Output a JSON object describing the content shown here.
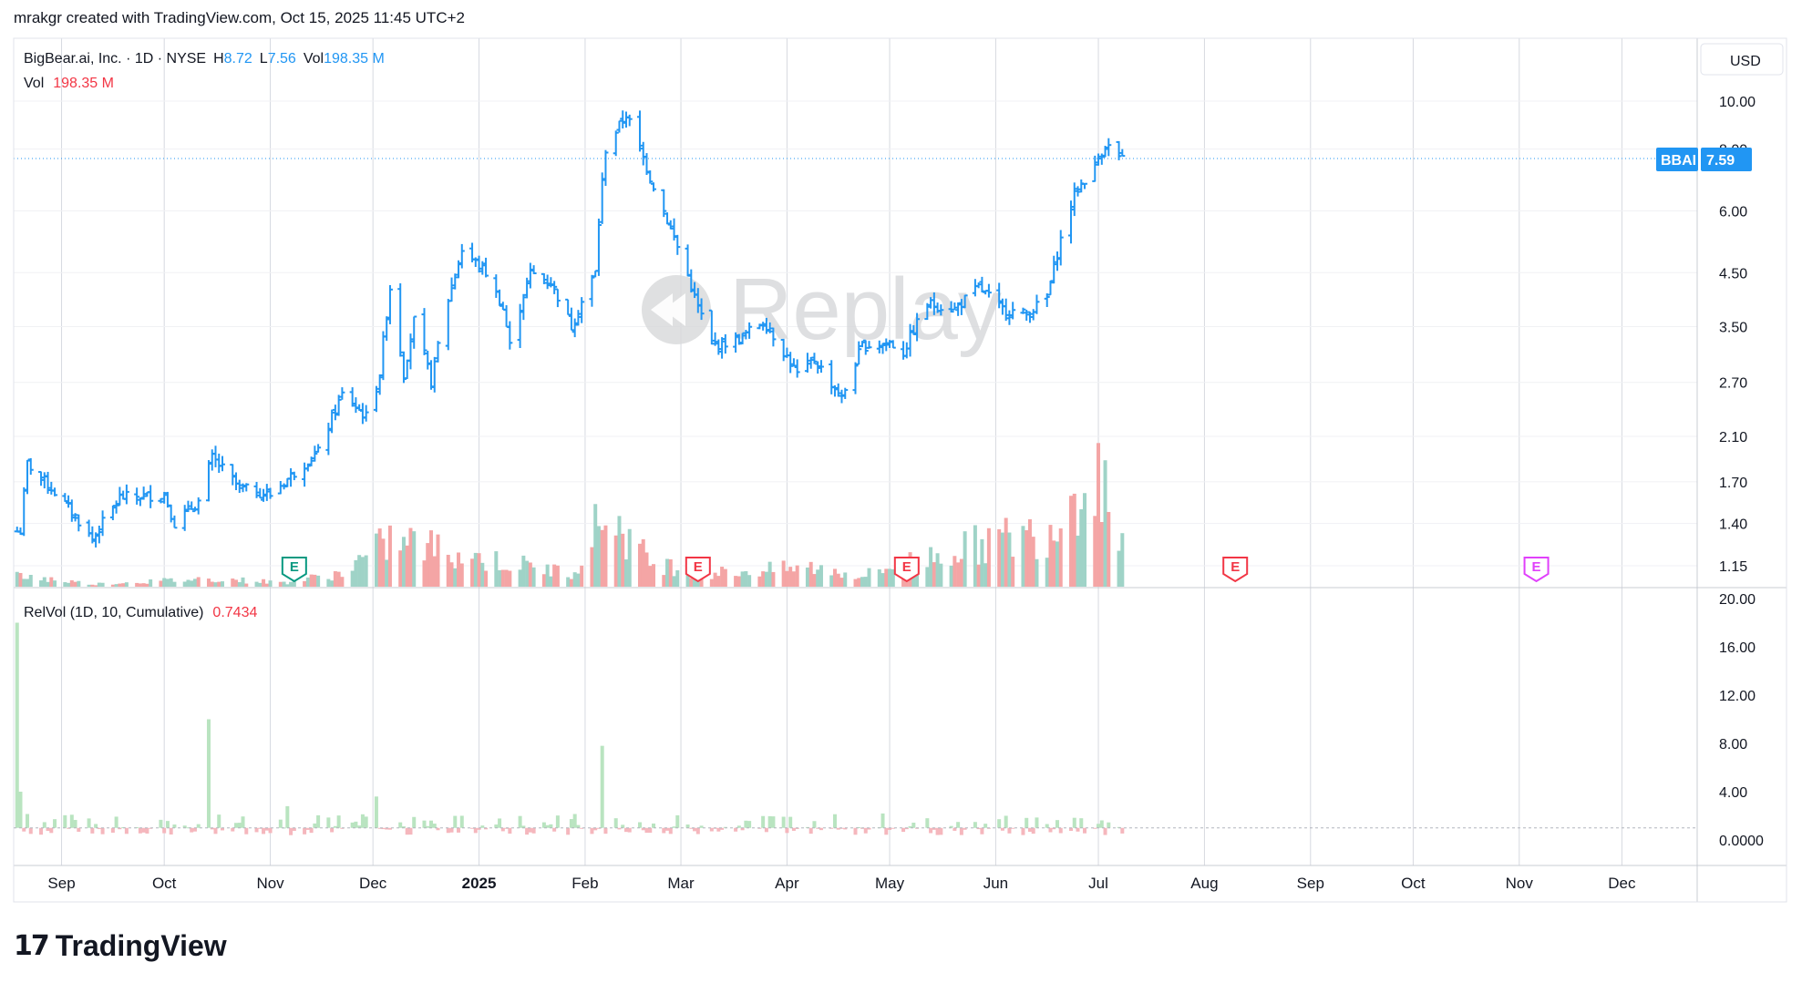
{
  "header": {
    "created_by": "mrakgr created with TradingView.com, Oct 15, 2025 11:45 UTC+2"
  },
  "legend": {
    "symbol": "BigBear.ai, Inc. · 1D · NYSE",
    "h_label": "H",
    "h_value": "8.72",
    "l_label": "L",
    "l_value": "7.56",
    "vol_label": "Vol",
    "vol_value": "198.35 M",
    "vol_row_label": "Vol",
    "vol_row_value": "198.35 M"
  },
  "currency": "USD",
  "price_tag": {
    "ticker": "BBAI",
    "price": "7.59"
  },
  "watermark": "Replay",
  "relvol_legend": {
    "label": "RelVol (1D, 10, Cumulative)",
    "value": "0.7434"
  },
  "brand": "TradingView",
  "colors": {
    "up": "#2196f3",
    "vol_up": "#9fd3c7",
    "vol_down": "#f4a5a5",
    "rv_up": "#b9e4c0",
    "rv_down": "#f5b7bd",
    "earnings_past": "#089981",
    "earnings_future": "#f23645",
    "earnings_dividend": "#e040fb",
    "grid": "#d6d9e0"
  },
  "chart_data": [
    {
      "type": "ohlc",
      "title": "BigBear.ai, Inc. · 1D · NYSE",
      "scale": "log",
      "y_ticks": [
        "10.00",
        "8.00",
        "6.00",
        "4.50",
        "3.50",
        "2.70",
        "2.10",
        "1.70",
        "1.40",
        "1.15"
      ],
      "x_ticks": [
        "Sep",
        "Oct",
        "Nov",
        "Dec",
        "2025",
        "Feb",
        "Mar",
        "Apr",
        "May",
        "Jun",
        "Jul",
        "Aug",
        "Sep",
        "Oct",
        "Nov",
        "Dec"
      ],
      "anchors": [
        [
          "2024-08-20",
          1.35
        ],
        [
          "2024-08-22",
          1.85
        ],
        [
          "2024-08-30",
          1.62
        ],
        [
          "2024-09-10",
          1.3
        ],
        [
          "2024-09-18",
          1.58
        ],
        [
          "2024-10-01",
          1.6
        ],
        [
          "2024-10-04",
          1.4
        ],
        [
          "2024-10-11",
          1.55
        ],
        [
          "2024-10-15",
          1.9
        ],
        [
          "2024-10-23",
          1.65
        ],
        [
          "2024-11-01",
          1.6
        ],
        [
          "2024-11-07",
          1.75
        ],
        [
          "2024-11-15",
          1.95
        ],
        [
          "2024-11-22",
          2.55
        ],
        [
          "2024-11-29",
          2.3
        ],
        [
          "2024-12-03",
          2.8
        ],
        [
          "2024-12-06",
          4.2
        ],
        [
          "2024-12-10",
          2.8
        ],
        [
          "2024-12-13",
          3.6
        ],
        [
          "2024-12-18",
          2.7
        ],
        [
          "2024-12-27",
          5.0
        ],
        [
          "2025-01-03",
          4.5
        ],
        [
          "2025-01-08",
          3.8
        ],
        [
          "2025-01-10",
          3.2
        ],
        [
          "2025-01-16",
          4.5
        ],
        [
          "2025-01-22",
          4.3
        ],
        [
          "2025-01-28",
          3.5
        ],
        [
          "2025-02-04",
          4.5
        ],
        [
          "2025-02-07",
          8.0
        ],
        [
          "2025-02-13",
          9.4
        ],
        [
          "2025-02-20",
          7.0
        ],
        [
          "2025-02-26",
          5.5
        ],
        [
          "2025-03-05",
          4.0
        ],
        [
          "2025-03-10",
          3.2
        ],
        [
          "2025-03-18",
          3.3
        ],
        [
          "2025-03-25",
          3.6
        ],
        [
          "2025-04-04",
          2.8
        ],
        [
          "2025-04-09",
          3.0
        ],
        [
          "2025-04-17",
          2.5
        ],
        [
          "2025-04-23",
          3.2
        ],
        [
          "2025-05-01",
          3.25
        ],
        [
          "2025-05-05",
          3.1
        ],
        [
          "2025-05-12",
          3.9
        ],
        [
          "2025-05-20",
          3.8
        ],
        [
          "2025-05-27",
          4.2
        ],
        [
          "2025-06-03",
          3.8
        ],
        [
          "2025-06-10",
          3.7
        ],
        [
          "2025-06-16",
          4.0
        ],
        [
          "2025-06-24",
          6.5
        ],
        [
          "2025-06-30",
          7.4
        ],
        [
          "2025-07-03",
          8.2
        ],
        [
          "2025-07-08",
          7.6
        ]
      ]
    },
    {
      "type": "bar",
      "title": "Vol",
      "anchors": [
        [
          "2024-08-20",
          8
        ],
        [
          "2024-09-10",
          2
        ],
        [
          "2024-10-15",
          6
        ],
        [
          "2024-11-05",
          3
        ],
        [
          "2024-11-22",
          10
        ],
        [
          "2024-12-06",
          34
        ],
        [
          "2024-12-13",
          32
        ],
        [
          "2025-01-03",
          20
        ],
        [
          "2025-01-28",
          10
        ],
        [
          "2025-02-07",
          56
        ],
        [
          "2025-02-20",
          18
        ],
        [
          "2025-03-10",
          10
        ],
        [
          "2025-04-09",
          14
        ],
        [
          "2025-04-23",
          8
        ],
        [
          "2025-05-12",
          22
        ],
        [
          "2025-06-03",
          35
        ],
        [
          "2025-06-16",
          40
        ],
        [
          "2025-06-24",
          70
        ],
        [
          "2025-06-30",
          92
        ],
        [
          "2025-07-08",
          40
        ]
      ]
    },
    {
      "type": "bar",
      "title": "RelVol (1D, 10, Cumulative)",
      "y_ticks": [
        "20.00",
        "16.00",
        "12.00",
        "8.00",
        "4.00",
        "0.0000"
      ],
      "ylim": [
        -1,
        20
      ],
      "spikes": [
        [
          "2024-08-19",
          18
        ],
        [
          "2024-08-20",
          4
        ],
        [
          "2024-10-14",
          10
        ],
        [
          "2025-02-06",
          7.8
        ],
        [
          "2024-12-02",
          3.6
        ],
        [
          "2024-11-06",
          2.8
        ],
        [
          "2025-06-26",
          1.8
        ]
      ]
    }
  ],
  "earnings": [
    {
      "date": "2024-11-08",
      "kind": "past",
      "letter": "E"
    },
    {
      "date": "2025-03-06",
      "kind": "future",
      "letter": "E"
    },
    {
      "date": "2025-05-06",
      "kind": "future",
      "letter": "E"
    },
    {
      "date": "2025-08-10",
      "kind": "future",
      "letter": "E"
    },
    {
      "date": "2025-11-06",
      "kind": "dividend",
      "letter": "E"
    }
  ]
}
